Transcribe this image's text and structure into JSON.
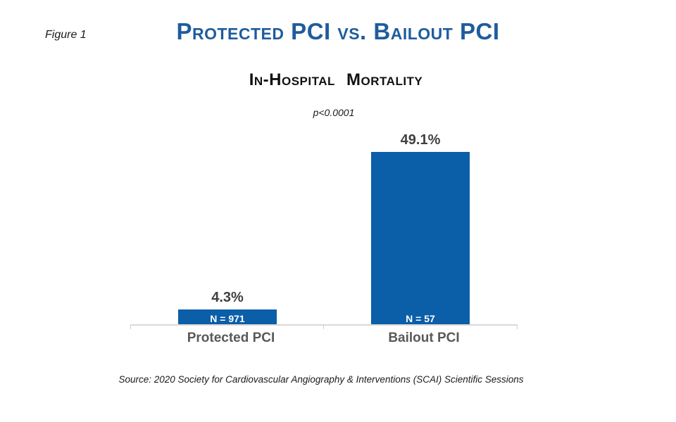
{
  "figure_label": "Figure 1",
  "source": "Source: 2020 Society for Cardiovascular Angiography & Interventions  (SCAI) Scientific  Sessions",
  "colors": {
    "title_blue": "#1e5c9d",
    "bar_blue": "#0b5ea8",
    "value_label_gray": "#404040",
    "category_label_gray": "#595959",
    "axis_line_gray": "#d9d9d9",
    "n_label_white": "#ffffff",
    "background": "#ffffff"
  },
  "chart_data": {
    "type": "bar",
    "title": "Protected PCI vs. Bailout PCI",
    "subtitle": "In-Hospital Mortality",
    "p_value": "p<0.0001",
    "categories": [
      "Protected PCI",
      "Bailout PCI"
    ],
    "values": [
      4.3,
      49.1
    ],
    "value_labels": [
      "4.3%",
      "49.1%"
    ],
    "bar_sublabels": [
      "N = 971",
      "N = 57"
    ],
    "sample_sizes": [
      971,
      57
    ],
    "xlabel": "",
    "ylabel": "",
    "ylim": [
      0,
      50
    ],
    "grid": false,
    "legend_position": "none",
    "bar_color": "#0b5ea8"
  }
}
